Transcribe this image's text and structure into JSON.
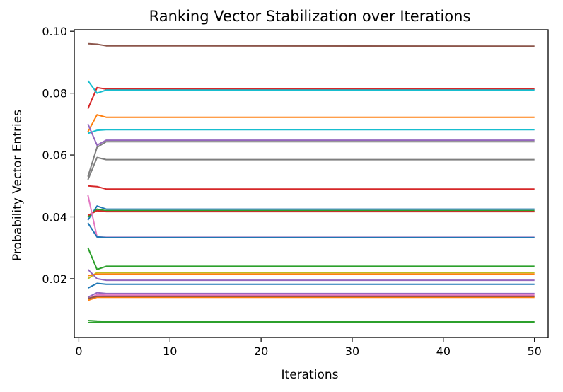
{
  "chart_data": {
    "type": "line",
    "title": "Ranking Vector Stabilization over Iterations",
    "xlabel": "Iterations",
    "ylabel": "Probability Vector Entries",
    "xlim": [
      -0.5,
      51.5
    ],
    "ylim": [
      0.001,
      0.1005
    ],
    "xticks": [
      0,
      10,
      20,
      30,
      40,
      50
    ],
    "xtick_labels": [
      "0",
      "10",
      "20",
      "30",
      "40",
      "50"
    ],
    "yticks": [
      0.02,
      0.04,
      0.06,
      0.08,
      0.1
    ],
    "ytick_labels": [
      "0.02",
      "0.04",
      "0.06",
      "0.08",
      "0.10"
    ],
    "grid": false,
    "legend": "none",
    "x_first": 1,
    "x_last": 50,
    "series": [
      {
        "color": "#8c564b",
        "start": [
          0.096,
          0.0958,
          0.0953
        ],
        "final": 0.0952
      },
      {
        "color": "#d62728",
        "start": [
          0.075,
          0.0818,
          0.0813
        ],
        "final": 0.0813
      },
      {
        "color": "#17becf",
        "start": [
          0.084,
          0.08,
          0.081
        ],
        "final": 0.081
      },
      {
        "color": "#ff7f0e",
        "start": [
          0.0675,
          0.073,
          0.0722
        ],
        "final": 0.0722
      },
      {
        "color": "#17becf",
        "start": [
          0.067,
          0.068,
          0.0682
        ],
        "final": 0.0682
      },
      {
        "color": "#9467bd",
        "start": [
          0.07,
          0.0632,
          0.0648
        ],
        "final": 0.0648
      },
      {
        "color": "#7f7f7f",
        "start": [
          0.053,
          0.0625,
          0.0643
        ],
        "final": 0.0643
      },
      {
        "color": "#7f7f7f",
        "start": [
          0.052,
          0.0592,
          0.0585
        ],
        "final": 0.0585
      },
      {
        "color": "#d62728",
        "start": [
          0.05,
          0.0498,
          0.049
        ],
        "final": 0.049
      },
      {
        "color": "#1f77b4",
        "start": [
          0.039,
          0.0435,
          0.0425
        ],
        "final": 0.0425
      },
      {
        "color": "#2ca02c",
        "start": [
          0.04,
          0.0425,
          0.042
        ],
        "final": 0.042
      },
      {
        "color": "#d62728",
        "start": [
          0.0405,
          0.042,
          0.0417
        ],
        "final": 0.0417
      },
      {
        "color": "#e377c2",
        "start": [
          0.047,
          0.0335,
          0.0334
        ],
        "final": 0.0334
      },
      {
        "color": "#1f77b4",
        "start": [
          0.038,
          0.0335,
          0.0333
        ],
        "final": 0.0333
      },
      {
        "color": "#2ca02c",
        "start": [
          0.03,
          0.023,
          0.024
        ],
        "final": 0.024
      },
      {
        "color": "#bcbd22",
        "start": [
          0.02,
          0.022,
          0.022
        ],
        "final": 0.022
      },
      {
        "color": "#ff7f0e",
        "start": [
          0.021,
          0.0215,
          0.0215
        ],
        "final": 0.0215
      },
      {
        "color": "#9467bd",
        "start": [
          0.023,
          0.02,
          0.0195
        ],
        "final": 0.0195
      },
      {
        "color": "#1f77b4",
        "start": [
          0.017,
          0.0185,
          0.0182
        ],
        "final": 0.0182
      },
      {
        "color": "#9467bd",
        "start": [
          0.014,
          0.0155,
          0.0152
        ],
        "final": 0.0152
      },
      {
        "color": "#e377c2",
        "start": [
          0.0135,
          0.0148,
          0.0147
        ],
        "final": 0.0147
      },
      {
        "color": "#ff7f0e",
        "start": [
          0.013,
          0.014,
          0.014
        ],
        "final": 0.014
      },
      {
        "color": "#8c564b",
        "start": [
          0.0136,
          0.0143,
          0.0143
        ],
        "final": 0.0143
      },
      {
        "color": "#2ca02c",
        "start": [
          0.0065,
          0.0063,
          0.0062
        ],
        "final": 0.0062
      },
      {
        "color": "#2ca02c",
        "start": [
          0.0058,
          0.0059,
          0.0059
        ],
        "final": 0.0059
      }
    ]
  }
}
